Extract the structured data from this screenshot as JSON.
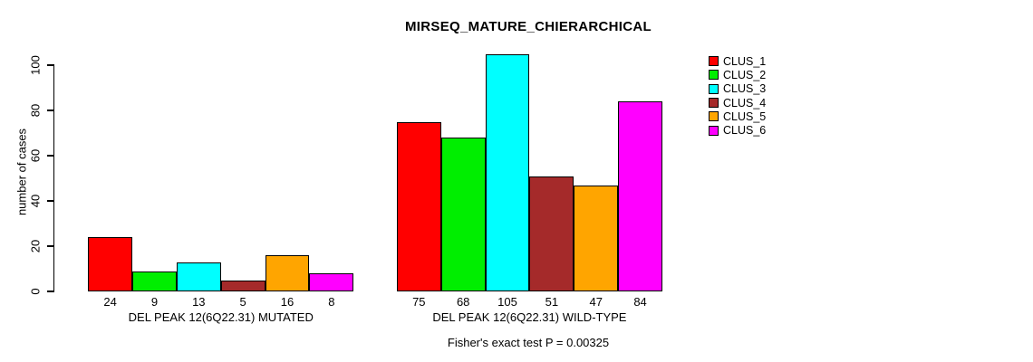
{
  "chart_data": {
    "type": "bar",
    "title": "MIRSEQ_MATURE_CHIERARCHICAL",
    "subtitle": "Fisher's exact test P = 0.00325",
    "ylabel": "number of cases",
    "xlabel": "",
    "ylim": [
      0,
      100
    ],
    "yticks": [
      0,
      20,
      40,
      60,
      80,
      100
    ],
    "grid": false,
    "legend_position": "right",
    "groups": [
      {
        "label": "DEL PEAK 12(6Q22.31) MUTATED",
        "values": [
          24,
          9,
          13,
          5,
          16,
          8
        ]
      },
      {
        "label": "DEL PEAK 12(6Q22.31) WILD-TYPE",
        "values": [
          75,
          68,
          105,
          51,
          47,
          84
        ]
      }
    ],
    "series": [
      {
        "name": "CLUS_1",
        "color": "#FF0000"
      },
      {
        "name": "CLUS_2",
        "color": "#00EE00"
      },
      {
        "name": "CLUS_3",
        "color": "#00FFFF"
      },
      {
        "name": "CLUS_4",
        "color": "#A52A2A"
      },
      {
        "name": "CLUS_5",
        "color": "#FFA500"
      },
      {
        "name": "CLUS_6",
        "color": "#FF00FF"
      }
    ],
    "bar_border_color": "#000000",
    "background_color": "#FFFFFF"
  }
}
